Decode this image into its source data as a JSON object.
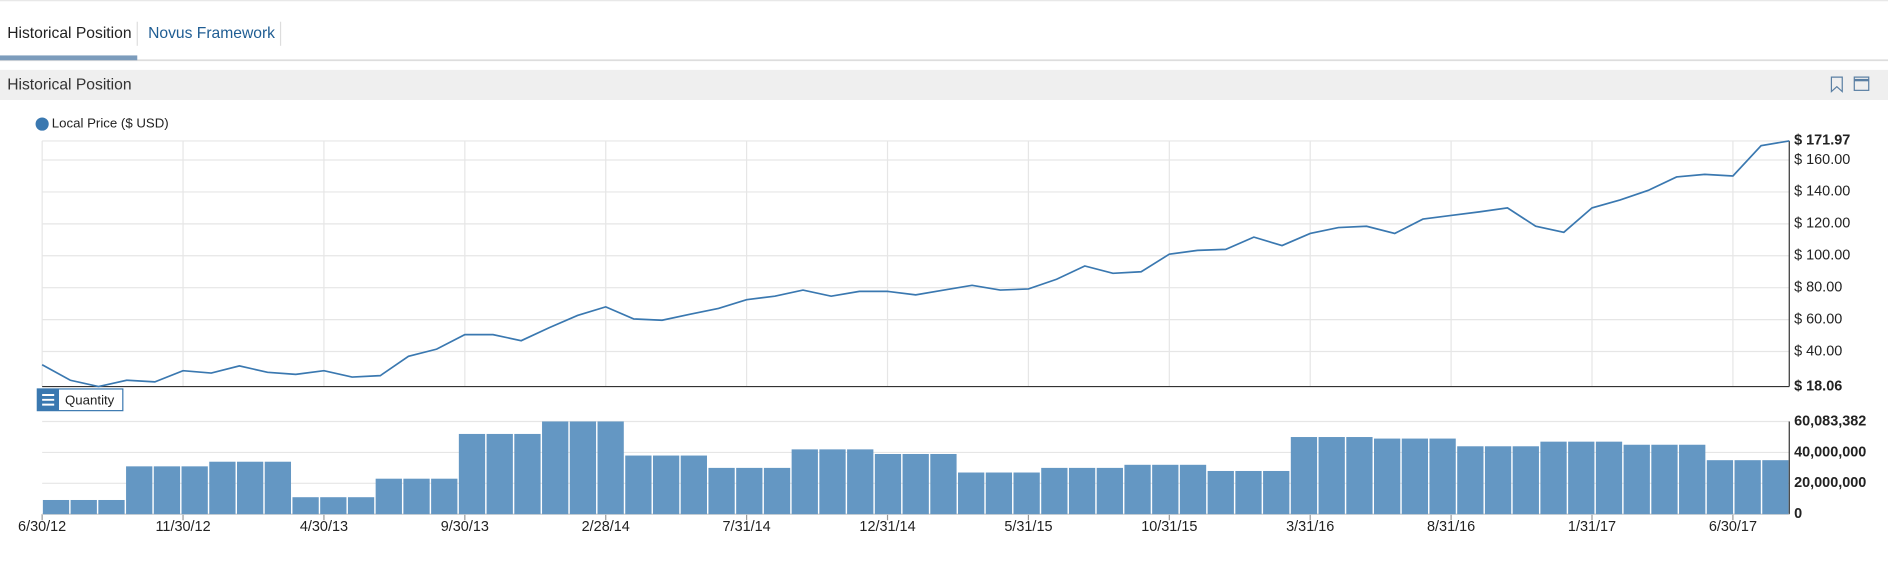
{
  "tabs": [
    "Historical Position",
    "Novus Framework"
  ],
  "panel": {
    "title": "Historical Position"
  },
  "chart_data": {
    "type": "combo",
    "categories": [
      "6/30/12",
      null,
      null,
      null,
      null,
      "11/30/12",
      null,
      null,
      null,
      null,
      "4/30/13",
      null,
      null,
      null,
      null,
      "9/30/13",
      null,
      null,
      null,
      null,
      "2/28/14",
      null,
      null,
      null,
      null,
      "7/31/14",
      null,
      null,
      null,
      null,
      "12/31/14",
      null,
      null,
      null,
      null,
      "5/31/15",
      null,
      null,
      null,
      null,
      "10/31/15",
      null,
      null,
      null,
      null,
      "3/31/16",
      null,
      null,
      null,
      null,
      "8/31/16",
      null,
      null,
      null,
      null,
      "1/31/17",
      null,
      null,
      null,
      null,
      "6/30/17",
      null,
      null
    ],
    "series": [
      {
        "name": "Local Price ($ USD)",
        "type": "line",
        "color": "#3a78b0",
        "values": [
          31.7,
          22,
          18.06,
          22,
          21,
          28,
          26.5,
          31,
          27,
          25.7,
          28,
          24,
          24.9,
          37,
          41.5,
          50.6,
          50.6,
          46.8,
          55,
          62.6,
          68,
          60.4,
          59.6,
          63.4,
          67,
          72.5,
          74.7,
          78.5,
          74.7,
          77.7,
          77.7,
          75.5,
          78.5,
          81.5,
          78.5,
          79.2,
          85.3,
          93.6,
          89,
          90,
          101,
          103.4,
          104,
          111.7,
          106.4,
          114,
          117.7,
          118.5,
          114,
          123,
          125.3,
          127.5,
          130,
          118.5,
          114.7,
          130,
          135,
          141,
          149.4,
          151,
          150,
          169,
          171.97
        ]
      },
      {
        "name": "Quantity",
        "type": "bar",
        "axis": "y2",
        "color": "#6497c3",
        "values": [
          9200000,
          9200000,
          9200000,
          31000000,
          31000000,
          31000000,
          34000000,
          34000000,
          34000000,
          11000000,
          11000000,
          11000000,
          23000000,
          23000000,
          23000000,
          52000000,
          52000000,
          52000000,
          60083382,
          60083382,
          60083382,
          38000000,
          38000000,
          38000000,
          30000000,
          30000000,
          30000000,
          42000000,
          42000000,
          42000000,
          39000000,
          39000000,
          39000000,
          27000000,
          27000000,
          27000000,
          30000000,
          30000000,
          30000000,
          32000000,
          32000000,
          32000000,
          28000000,
          28000000,
          28000000,
          50000000,
          50000000,
          50000000,
          49000000,
          49000000,
          49000000,
          44000000,
          44000000,
          44000000,
          47000000,
          47000000,
          47000000,
          45000000,
          45000000,
          45000000,
          35000000,
          35000000,
          35000000
        ]
      }
    ],
    "ylim": [
      18.06,
      171.97
    ],
    "yticks": [
      {
        "value": 18.06,
        "label": "$ 18.06"
      },
      {
        "value": 40,
        "label": "$ 40.00"
      },
      {
        "value": 60,
        "label": "$ 60.00"
      },
      {
        "value": 80,
        "label": "$ 80.00"
      },
      {
        "value": 100,
        "label": "$ 100.00"
      },
      {
        "value": 120,
        "label": "$ 120.00"
      },
      {
        "value": 140,
        "label": "$ 140.00"
      },
      {
        "value": 160,
        "label": "$ 160.00"
      },
      {
        "value": 171.97,
        "label": "$ 171.97"
      }
    ],
    "y2lim": [
      0,
      60083382
    ],
    "y2ticks": [
      0,
      {
        "value": 20000000,
        "label": "20,000,000"
      },
      {
        "value": 40000000,
        "label": "40,000,000"
      },
      {
        "value": 60083382,
        "label": "60,083,382"
      }
    ],
    "grid": true
  }
}
